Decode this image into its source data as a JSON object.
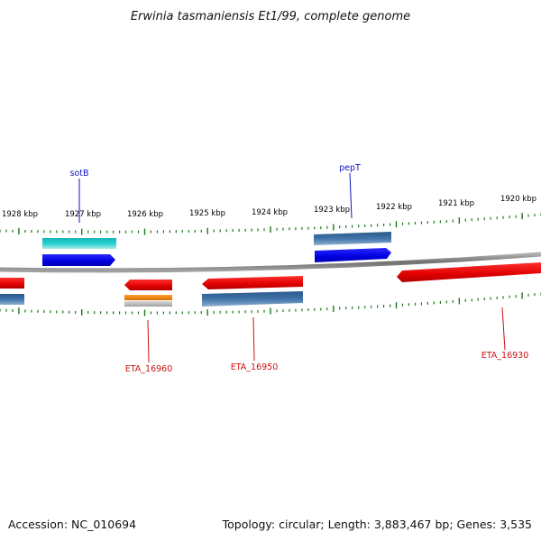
{
  "title": "Erwinia tasmaniensis Et1/99, complete genome",
  "footer": {
    "accession": "Accession: NC_010694",
    "topology": "Topology: circular; Length: 3,883,467 bp; Genes: 3,535"
  },
  "scale_labels": [
    "1928 kbp",
    "1927 kbp",
    "1926 kbp",
    "1925 kbp",
    "1924 kbp",
    "1923 kbp",
    "1922 kbp",
    "1921 kbp",
    "1920 kbp"
  ],
  "gene_labels": {
    "sotB": "sotB",
    "pepT": "pepT",
    "eta16960": "ETA_16960",
    "eta16950": "ETA_16950",
    "eta16930": "ETA_16930"
  },
  "colors": {
    "backbone": "#8a8a8a",
    "tick": "#1a7a1a",
    "cds_forward": "#0000e6",
    "cds_reverse": "#ee0000",
    "gene_bar": "#3d6fa8",
    "rna_cyan": "#1ec8c8",
    "rna_orange": "#f08c1c",
    "label_top": "#1010c0",
    "label_bottom": "#cc1010"
  }
}
